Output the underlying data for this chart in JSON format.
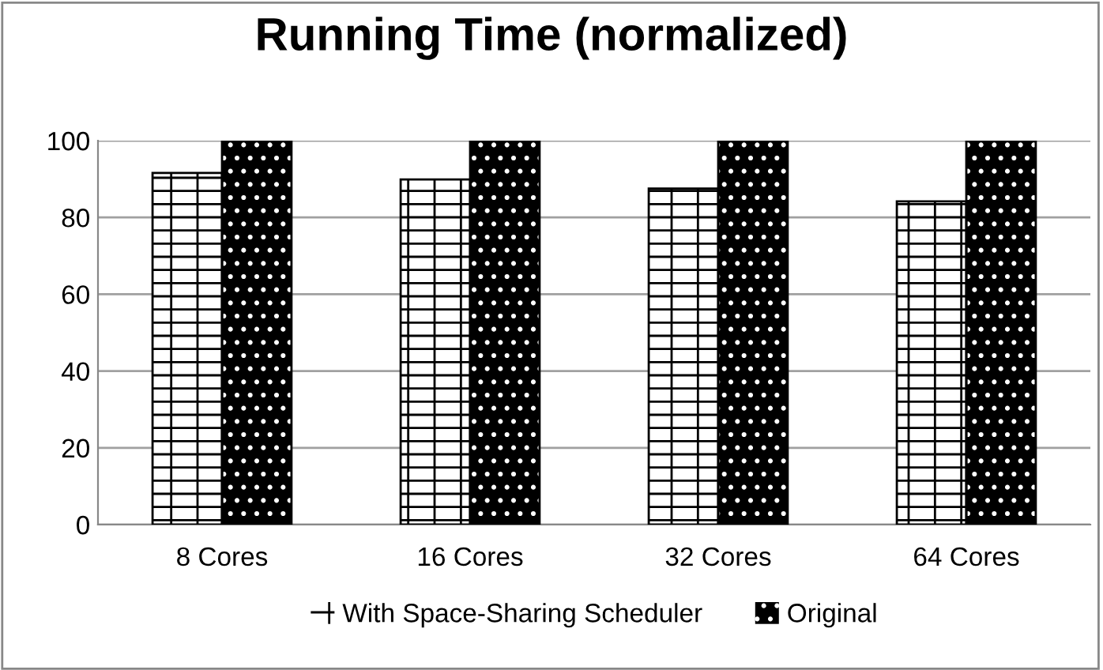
{
  "chart_data": {
    "type": "bar",
    "title": "Running Time (normalized)",
    "categories": [
      "8 Cores",
      "16 Cores",
      "32 Cores",
      "64 Cores"
    ],
    "series": [
      {
        "name": "With Space-Sharing Scheduler",
        "color": "#ffffff",
        "values": [
          91.6,
          89.9,
          87.5,
          84.2
        ]
      },
      {
        "name": "Original",
        "color": "#000000",
        "values": [
          100,
          100,
          100,
          100
        ]
      }
    ],
    "ylim": [
      0,
      100
    ],
    "yticks": [
      0,
      20,
      40,
      60,
      80,
      100
    ],
    "grid": "y",
    "legend": "bottom"
  }
}
